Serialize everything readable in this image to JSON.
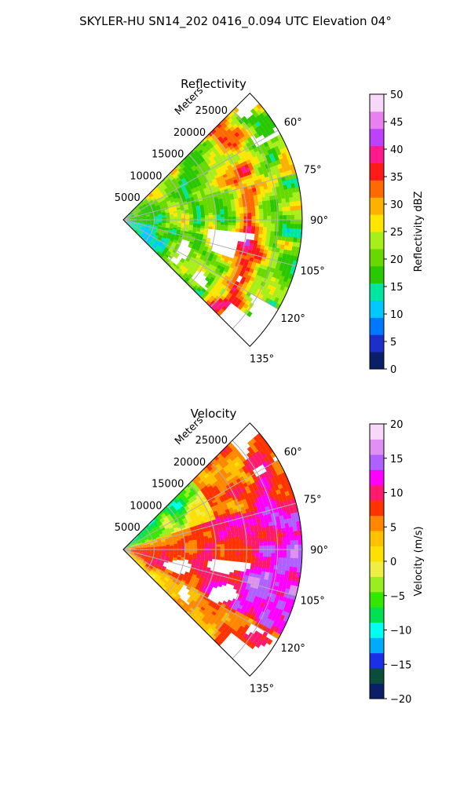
{
  "figure": {
    "title": "SKYLER-HU  SN14_202  0416_0.094 UTC Elevation 04°"
  },
  "chart_data": [
    {
      "type": "heatmap",
      "subtype": "polar-sector",
      "title": "Reflectivity",
      "radial_label": "Meters",
      "radial_ticks": [
        "5000",
        "10000",
        "15000",
        "20000",
        "25000"
      ],
      "radial_tick_values": [
        5000,
        10000,
        15000,
        20000,
        25000
      ],
      "rmax": 29000,
      "angle_ticks": [
        "60°",
        "75°",
        "90°",
        "105°",
        "120°",
        "135°"
      ],
      "angle_tick_values": [
        60,
        75,
        90,
        105,
        120,
        135
      ],
      "theta_range": [
        45,
        135
      ],
      "grid": true,
      "colorbar": {
        "label": "Reflectivity dBZ",
        "ticks": [
          "0",
          "5",
          "10",
          "15",
          "20",
          "25",
          "30",
          "35",
          "40",
          "45",
          "50"
        ],
        "range": [
          0,
          50
        ]
      },
      "colors": [
        "#0a1f66",
        "#1d2fc8",
        "#0077ff",
        "#00c8ff",
        "#00e6a0",
        "#29c800",
        "#66d900",
        "#a8ee1a",
        "#ffe600",
        "#ffb000",
        "#ff6a00",
        "#ff1a1a",
        "#ff1a8c",
        "#c040ff",
        "#e880f0",
        "#f8d8f8"
      ]
    },
    {
      "type": "heatmap",
      "subtype": "polar-sector",
      "title": "Velocity",
      "radial_label": "Meters",
      "radial_ticks": [
        "5000",
        "10000",
        "15000",
        "20000",
        "25000"
      ],
      "radial_tick_values": [
        5000,
        10000,
        15000,
        20000,
        25000
      ],
      "rmax": 29000,
      "angle_ticks": [
        "60°",
        "75°",
        "90°",
        "105°",
        "120°",
        "135°"
      ],
      "angle_tick_values": [
        60,
        75,
        90,
        105,
        120,
        135
      ],
      "theta_range": [
        45,
        135
      ],
      "grid": true,
      "colorbar": {
        "label": "Velocity (m/s)",
        "ticks": [
          "20",
          "15",
          "10",
          "5",
          "0",
          "−5",
          "−10",
          "−15",
          "−20"
        ],
        "range": [
          -20,
          20
        ]
      },
      "colors": [
        "#0a1f66",
        "#0a4d3a",
        "#1a2fe6",
        "#00aaff",
        "#00ffee",
        "#00e050",
        "#33e800",
        "#99ee22",
        "#eeee44",
        "#ffe000",
        "#ffc000",
        "#ff8800",
        "#ff3300",
        "#ff1a6e",
        "#ff00ff",
        "#b060ff",
        "#e090f0",
        "#f8d8f8"
      ]
    }
  ]
}
